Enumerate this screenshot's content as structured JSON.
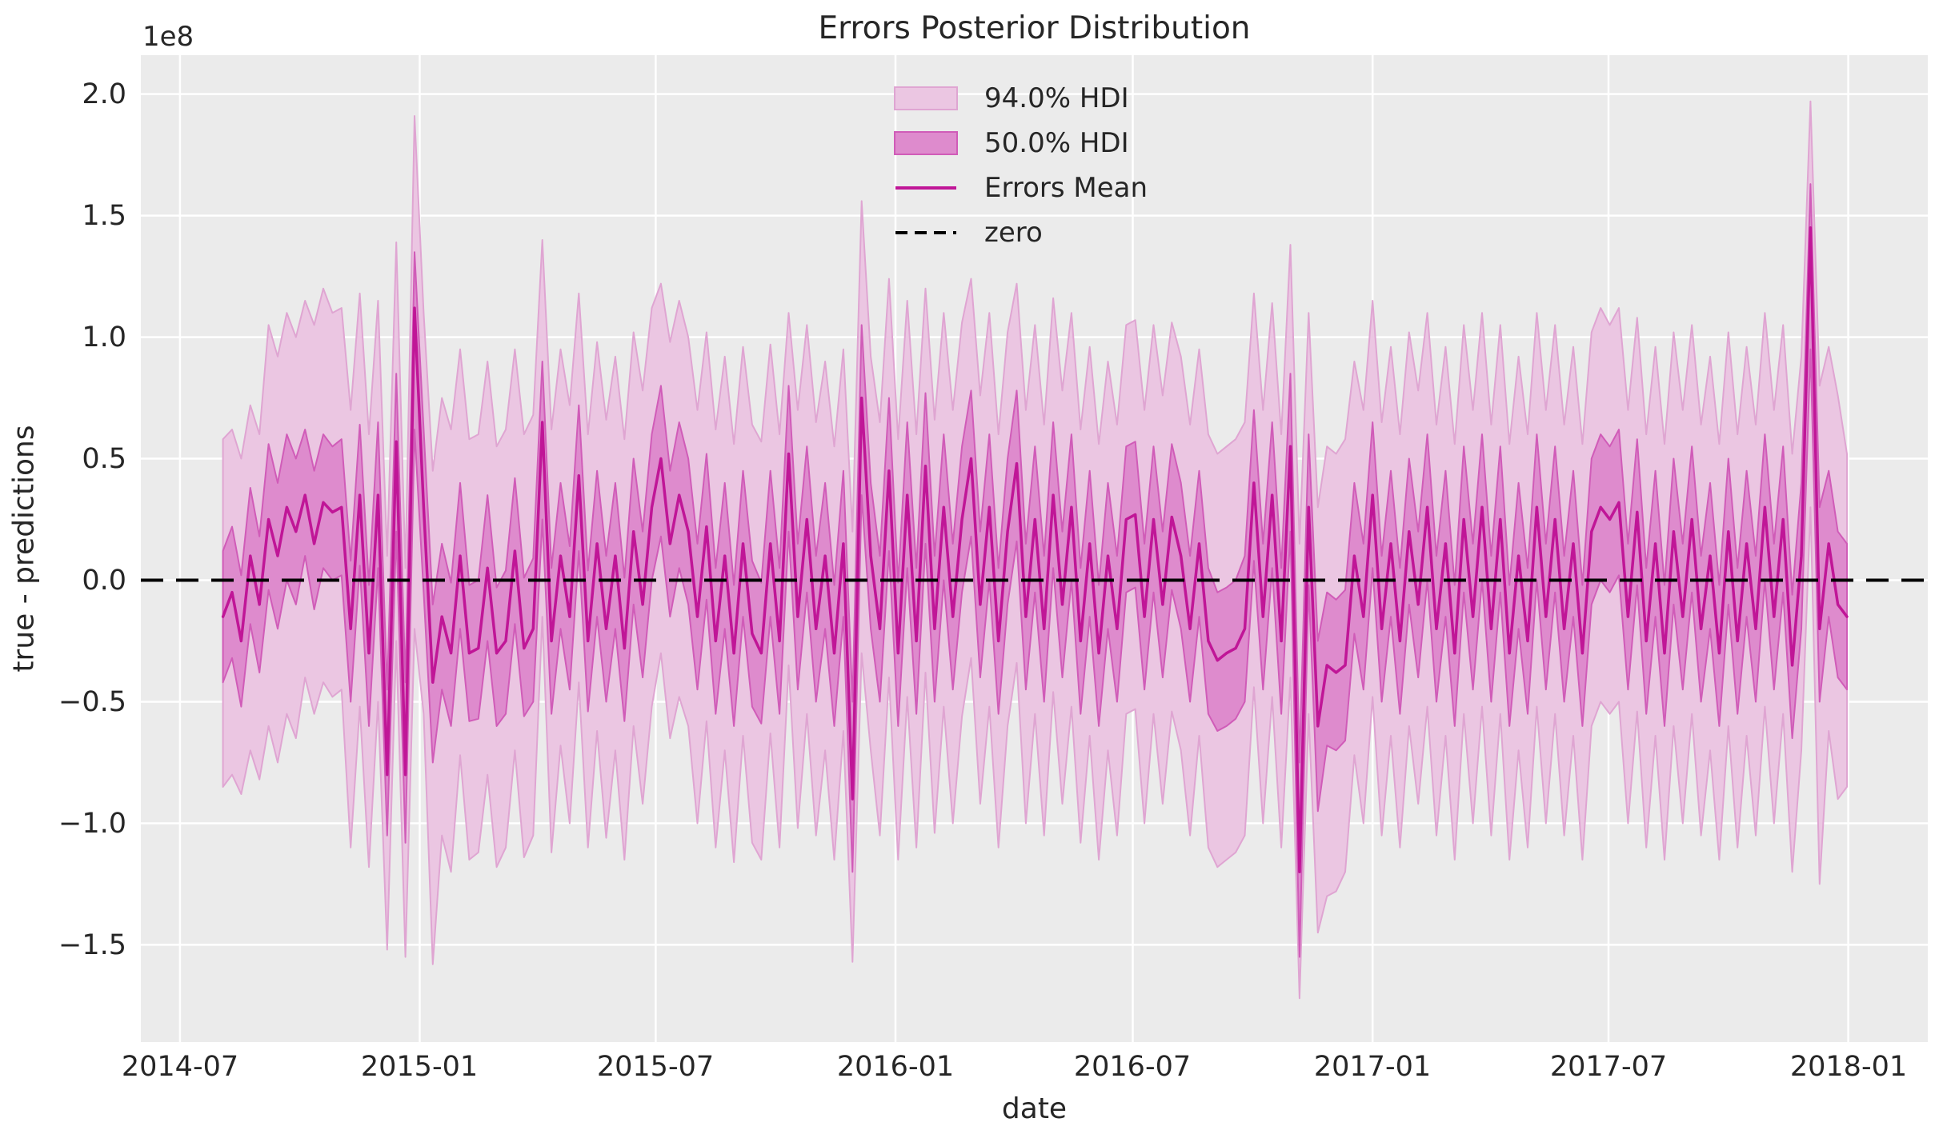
{
  "figure": {
    "title": "Errors Posterior Distribution",
    "xlabel": "date",
    "ylabel": "true - predictions",
    "offset_text": "1e8"
  },
  "colors": {
    "fig_bg": "#ffffff",
    "axes_bg": "#ebebeb",
    "grid": "#ffffff",
    "text": "#262626",
    "mean_line": "#c01697",
    "hdi50_fill": "#de8bcd",
    "hdi50_edge": "#d05cb8",
    "hdi94_fill": "#ebc6e2",
    "hdi94_edge": "#dfa5d2",
    "zero_line": "#000000"
  },
  "legend": {
    "items": [
      {
        "label": "94.0% HDI",
        "type": "patch"
      },
      {
        "label": "50.0% HDI",
        "type": "patch"
      },
      {
        "label": "Errors Mean",
        "type": "line"
      },
      {
        "label": "zero",
        "type": "dashed-line"
      }
    ]
  },
  "chart_data": {
    "type": "line",
    "title": "Errors Posterior Distribution",
    "xlabel": "date",
    "ylabel": "true - predictions",
    "y_offset_label": "1e8",
    "y_scale_factor": 100000000,
    "grid": true,
    "legend_position": "upper center-right",
    "xlim": [
      "2014-06-01",
      "2018-03-03"
    ],
    "ylim": [
      -1.9,
      2.16
    ],
    "x_tick_dates": [
      "2014-07-01",
      "2015-01-01",
      "2015-07-01",
      "2016-01-01",
      "2016-07-01",
      "2017-01-01",
      "2017-07-01",
      "2018-01-01"
    ],
    "x_ticklabels": [
      "2014-07",
      "2015-01",
      "2015-07",
      "2016-01",
      "2016-07",
      "2017-01",
      "2017-07",
      "2018-01"
    ],
    "y_ticks": [
      2.0,
      1.5,
      1.0,
      0.5,
      0.0,
      -0.5,
      -1.0,
      -1.5
    ],
    "y_ticklabels": [
      "2.0",
      "1.5",
      "1.0",
      "0.5",
      "0.0",
      "−0.5",
      "−1.0",
      "−1.5"
    ],
    "series": [
      {
        "name": "Errors Mean",
        "type": "line"
      },
      {
        "name": "50.0% HDI",
        "type": "band",
        "hdi_prob": 0.5
      },
      {
        "name": "94.0% HDI",
        "type": "band",
        "hdi_prob": 0.94
      },
      {
        "name": "zero",
        "type": "hline",
        "value": 0
      }
    ],
    "x_start_date": "2014-08-03",
    "x_interval_days": 7,
    "columns": [
      "mean",
      "hdi50_lower",
      "hdi50_upper",
      "hdi94_lower",
      "hdi94_upper"
    ],
    "units": "1e8 (true - predictions)",
    "points": [
      [
        -0.15,
        -0.42,
        0.12,
        -0.85,
        0.58
      ],
      [
        -0.05,
        -0.32,
        0.22,
        -0.8,
        0.62
      ],
      [
        -0.25,
        -0.52,
        0.02,
        -0.88,
        0.5
      ],
      [
        0.1,
        -0.18,
        0.38,
        -0.7,
        0.72
      ],
      [
        -0.1,
        -0.38,
        0.18,
        -0.82,
        0.6
      ],
      [
        0.25,
        -0.04,
        0.56,
        -0.6,
        1.05
      ],
      [
        0.1,
        -0.2,
        0.4,
        -0.75,
        0.92
      ],
      [
        0.3,
        0,
        0.6,
        -0.55,
        1.1
      ],
      [
        0.2,
        -0.1,
        0.5,
        -0.65,
        1.0
      ],
      [
        0.35,
        0.1,
        0.62,
        -0.4,
        1.15
      ],
      [
        0.15,
        -0.12,
        0.45,
        -0.55,
        1.05
      ],
      [
        0.32,
        0.05,
        0.6,
        -0.42,
        1.2
      ],
      [
        0.28,
        0,
        0.55,
        -0.48,
        1.1
      ],
      [
        0.3,
        0.02,
        0.58,
        -0.45,
        1.12
      ],
      [
        -0.2,
        -0.5,
        0.08,
        -1.1,
        0.7
      ],
      [
        0.35,
        0.06,
        0.64,
        -0.52,
        1.18
      ],
      [
        -0.3,
        -0.6,
        -0.02,
        -1.18,
        0.6
      ],
      [
        0.35,
        0.05,
        0.65,
        -0.5,
        1.15
      ],
      [
        -0.8,
        -1.05,
        -0.45,
        -1.52,
        0.1
      ],
      [
        0.57,
        0.2,
        0.85,
        -0.25,
        1.39
      ],
      [
        -0.8,
        -1.08,
        -0.42,
        -1.55,
        0.05
      ],
      [
        1.12,
        0.62,
        1.35,
        -0.2,
        1.91
      ],
      [
        0.3,
        -0.05,
        0.62,
        -0.55,
        1.1
      ],
      [
        -0.42,
        -0.75,
        -0.1,
        -1.58,
        0.45
      ],
      [
        -0.15,
        -0.45,
        0.15,
        -1.05,
        0.75
      ],
      [
        -0.3,
        -0.6,
        -0.01,
        -1.2,
        0.62
      ],
      [
        0.1,
        -0.2,
        0.4,
        -0.72,
        0.95
      ],
      [
        -0.3,
        -0.58,
        -0.02,
        -1.15,
        0.58
      ],
      [
        -0.28,
        -0.57,
        0,
        -1.12,
        0.6
      ],
      [
        0.05,
        -0.25,
        0.35,
        -0.8,
        0.9
      ],
      [
        -0.3,
        -0.6,
        -0.03,
        -1.18,
        0.55
      ],
      [
        -0.25,
        -0.55,
        0.04,
        -1.1,
        0.62
      ],
      [
        0.12,
        -0.18,
        0.42,
        -0.7,
        0.95
      ],
      [
        -0.28,
        -0.56,
        0.01,
        -1.14,
        0.6
      ],
      [
        -0.2,
        -0.5,
        0.09,
        -1.05,
        0.68
      ],
      [
        0.65,
        0.25,
        0.9,
        -0.15,
        1.4
      ],
      [
        -0.25,
        -0.55,
        0.05,
        -1.12,
        0.62
      ],
      [
        0.1,
        -0.2,
        0.4,
        -0.68,
        0.95
      ],
      [
        -0.15,
        -0.45,
        0.14,
        -1.0,
        0.72
      ],
      [
        0.43,
        0.12,
        0.72,
        -0.42,
        1.18
      ],
      [
        -0.25,
        -0.54,
        0.04,
        -1.1,
        0.6
      ],
      [
        0.15,
        -0.15,
        0.45,
        -0.62,
        0.98
      ],
      [
        -0.2,
        -0.5,
        0.1,
        -1.06,
        0.66
      ],
      [
        0.1,
        -0.2,
        0.4,
        -0.7,
        0.92
      ],
      [
        -0.28,
        -0.58,
        0.01,
        -1.15,
        0.58
      ],
      [
        0.2,
        -0.1,
        0.5,
        -0.6,
        1.02
      ],
      [
        -0.1,
        -0.4,
        0.2,
        -0.92,
        0.78
      ],
      [
        0.3,
        0,
        0.6,
        -0.52,
        1.12
      ],
      [
        0.5,
        0.18,
        0.8,
        -0.3,
        1.22
      ],
      [
        0.15,
        -0.15,
        0.45,
        -0.65,
        0.98
      ],
      [
        0.35,
        0.05,
        0.65,
        -0.48,
        1.15
      ],
      [
        0.2,
        -0.1,
        0.5,
        -0.6,
        1.0
      ],
      [
        -0.15,
        -0.45,
        0.15,
        -1.0,
        0.7
      ],
      [
        0.22,
        -0.08,
        0.52,
        -0.58,
        1.02
      ],
      [
        -0.25,
        -0.55,
        0.05,
        -1.1,
        0.62
      ],
      [
        0.1,
        -0.2,
        0.4,
        -0.7,
        0.92
      ],
      [
        -0.3,
        -0.6,
        -0.02,
        -1.16,
        0.56
      ],
      [
        0.15,
        -0.15,
        0.45,
        -0.64,
        0.96
      ],
      [
        -0.22,
        -0.52,
        0.08,
        -1.08,
        0.64
      ],
      [
        -0.3,
        -0.59,
        -0.01,
        -1.15,
        0.57
      ],
      [
        0.15,
        -0.15,
        0.45,
        -0.63,
        0.97
      ],
      [
        -0.25,
        -0.55,
        0.05,
        -1.1,
        0.6
      ],
      [
        0.52,
        0.2,
        0.8,
        -0.35,
        1.1
      ],
      [
        -0.15,
        -0.45,
        0.15,
        -1.02,
        0.7
      ],
      [
        0.25,
        -0.05,
        0.55,
        -0.55,
        1.05
      ],
      [
        -0.2,
        -0.5,
        0.1,
        -1.05,
        0.65
      ],
      [
        0.1,
        -0.2,
        0.4,
        -0.7,
        0.9
      ],
      [
        -0.3,
        -0.6,
        -0.02,
        -1.15,
        0.55
      ],
      [
        0.15,
        -0.15,
        0.45,
        -0.62,
        0.95
      ],
      [
        -0.9,
        -1.2,
        -0.5,
        -1.57,
        0.2
      ],
      [
        0.75,
        0.35,
        1.05,
        -0.3,
        1.56
      ],
      [
        0.1,
        -0.2,
        0.4,
        -0.7,
        0.92
      ],
      [
        -0.2,
        -0.5,
        0.1,
        -1.05,
        0.65
      ],
      [
        0.45,
        0.12,
        0.75,
        -0.4,
        1.24
      ],
      [
        -0.3,
        -0.6,
        -0.01,
        -1.15,
        0.58
      ],
      [
        0.35,
        0.05,
        0.65,
        -0.48,
        1.15
      ],
      [
        -0.25,
        -0.55,
        0.05,
        -1.1,
        0.6
      ],
      [
        0.47,
        0.15,
        0.77,
        -0.38,
        1.2
      ],
      [
        -0.2,
        -0.5,
        0.1,
        -1.04,
        0.66
      ],
      [
        0.3,
        0,
        0.6,
        -0.52,
        1.1
      ],
      [
        -0.15,
        -0.45,
        0.15,
        -1.0,
        0.7
      ],
      [
        0.25,
        -0.05,
        0.55,
        -0.56,
        1.06
      ],
      [
        0.5,
        0.18,
        0.78,
        -0.32,
        1.24
      ],
      [
        -0.1,
        -0.4,
        0.2,
        -0.92,
        0.76
      ],
      [
        0.3,
        0,
        0.6,
        -0.52,
        1.1
      ],
      [
        -0.25,
        -0.55,
        0.05,
        -1.1,
        0.6
      ],
      [
        0.2,
        -0.1,
        0.5,
        -0.6,
        1.02
      ],
      [
        0.48,
        0.16,
        0.78,
        -0.34,
        1.22
      ],
      [
        -0.15,
        -0.45,
        0.15,
        -1.0,
        0.7
      ],
      [
        0.25,
        -0.05,
        0.55,
        -0.55,
        1.05
      ],
      [
        -0.2,
        -0.5,
        0.1,
        -1.05,
        0.64
      ],
      [
        0.35,
        0.05,
        0.65,
        -0.46,
        1.16
      ],
      [
        -0.1,
        -0.4,
        0.2,
        -0.92,
        0.78
      ],
      [
        0.3,
        0,
        0.6,
        -0.52,
        1.1
      ],
      [
        -0.25,
        -0.55,
        0.05,
        -1.08,
        0.62
      ],
      [
        0.15,
        -0.15,
        0.45,
        -0.64,
        0.96
      ],
      [
        -0.3,
        -0.6,
        -0.02,
        -1.15,
        0.56
      ],
      [
        0.1,
        -0.2,
        0.4,
        -0.7,
        0.9
      ],
      [
        -0.2,
        -0.5,
        0.1,
        -1.05,
        0.64
      ],
      [
        0.25,
        -0.05,
        0.55,
        -0.55,
        1.05
      ],
      [
        0.27,
        -0.03,
        0.57,
        -0.53,
        1.07
      ],
      [
        -0.15,
        -0.45,
        0.15,
        -1.0,
        0.7
      ],
      [
        0.25,
        -0.05,
        0.55,
        -0.55,
        1.05
      ],
      [
        -0.1,
        -0.4,
        0.2,
        -0.92,
        0.76
      ],
      [
        0.26,
        -0.04,
        0.56,
        -0.54,
        1.06
      ],
      [
        0.1,
        -0.2,
        0.4,
        -0.7,
        0.92
      ],
      [
        -0.2,
        -0.5,
        0.1,
        -1.05,
        0.64
      ],
      [
        0.15,
        -0.15,
        0.45,
        -0.64,
        0.95
      ],
      [
        -0.25,
        -0.55,
        0.05,
        -1.1,
        0.6
      ],
      [
        -0.33,
        -0.62,
        -0.05,
        -1.18,
        0.52
      ],
      [
        -0.3,
        -0.6,
        -0.03,
        -1.15,
        0.55
      ],
      [
        -0.28,
        -0.57,
        0,
        -1.12,
        0.58
      ],
      [
        -0.2,
        -0.5,
        0.1,
        -1.05,
        0.65
      ],
      [
        0.4,
        0.08,
        0.7,
        -0.44,
        1.18
      ],
      [
        -0.15,
        -0.45,
        0.15,
        -1.0,
        0.7
      ],
      [
        0.35,
        0.05,
        0.65,
        -0.48,
        1.14
      ],
      [
        -0.25,
        -0.55,
        0.05,
        -1.1,
        0.6
      ],
      [
        0.55,
        0.2,
        0.85,
        -0.4,
        1.38
      ],
      [
        -1.2,
        -1.55,
        -0.75,
        -1.72,
        0.15
      ],
      [
        0.3,
        -0.02,
        0.6,
        -0.55,
        1.1
      ],
      [
        -0.6,
        -0.95,
        -0.25,
        -1.45,
        0.3
      ],
      [
        -0.35,
        -0.68,
        -0.05,
        -1.3,
        0.55
      ],
      [
        -0.38,
        -0.7,
        -0.08,
        -1.28,
        0.52
      ],
      [
        -0.35,
        -0.66,
        -0.04,
        -1.2,
        0.58
      ],
      [
        0.1,
        -0.22,
        0.4,
        -0.72,
        0.9
      ],
      [
        -0.15,
        -0.45,
        0.15,
        -1.0,
        0.7
      ],
      [
        0.35,
        0.05,
        0.65,
        -0.48,
        1.15
      ],
      [
        -0.2,
        -0.5,
        0.1,
        -1.05,
        0.65
      ],
      [
        0.15,
        -0.15,
        0.45,
        -0.64,
        0.96
      ],
      [
        -0.25,
        -0.55,
        0.05,
        -1.1,
        0.6
      ],
      [
        0.2,
        -0.1,
        0.5,
        -0.6,
        1.02
      ],
      [
        -0.1,
        -0.4,
        0.2,
        -0.92,
        0.78
      ],
      [
        0.3,
        0,
        0.6,
        -0.52,
        1.1
      ],
      [
        -0.2,
        -0.5,
        0.1,
        -1.05,
        0.64
      ],
      [
        0.15,
        -0.15,
        0.45,
        -0.64,
        0.96
      ],
      [
        -0.3,
        -0.6,
        -0.02,
        -1.15,
        0.56
      ],
      [
        0.25,
        -0.05,
        0.55,
        -0.55,
        1.05
      ],
      [
        -0.15,
        -0.45,
        0.15,
        -1.0,
        0.7
      ],
      [
        0.3,
        0,
        0.6,
        -0.52,
        1.1
      ],
      [
        -0.2,
        -0.5,
        0.1,
        -1.05,
        0.64
      ],
      [
        0.25,
        -0.05,
        0.55,
        -0.55,
        1.05
      ],
      [
        -0.3,
        -0.6,
        -0.02,
        -1.15,
        0.56
      ],
      [
        0.1,
        -0.2,
        0.4,
        -0.7,
        0.92
      ],
      [
        -0.25,
        -0.55,
        0.05,
        -1.1,
        0.6
      ],
      [
        0.3,
        0,
        0.6,
        -0.52,
        1.1
      ],
      [
        -0.15,
        -0.45,
        0.15,
        -1.0,
        0.7
      ],
      [
        0.25,
        -0.05,
        0.55,
        -0.55,
        1.05
      ],
      [
        -0.2,
        -0.5,
        0.1,
        -1.05,
        0.64
      ],
      [
        0.15,
        -0.15,
        0.45,
        -0.64,
        0.96
      ],
      [
        -0.3,
        -0.6,
        -0.02,
        -1.15,
        0.56
      ],
      [
        0.2,
        -0.1,
        0.5,
        -0.6,
        1.02
      ],
      [
        0.3,
        0,
        0.6,
        -0.5,
        1.12
      ],
      [
        0.25,
        -0.05,
        0.55,
        -0.55,
        1.05
      ],
      [
        0.32,
        0.02,
        0.62,
        -0.5,
        1.12
      ],
      [
        -0.15,
        -0.45,
        0.15,
        -1.0,
        0.7
      ],
      [
        0.28,
        -0.02,
        0.58,
        -0.54,
        1.08
      ],
      [
        -0.25,
        -0.55,
        0.05,
        -1.1,
        0.6
      ],
      [
        0.15,
        -0.15,
        0.45,
        -0.64,
        0.96
      ],
      [
        -0.3,
        -0.6,
        -0.02,
        -1.15,
        0.56
      ],
      [
        0.2,
        -0.1,
        0.5,
        -0.6,
        1.02
      ],
      [
        -0.15,
        -0.45,
        0.15,
        -1.0,
        0.7
      ],
      [
        0.25,
        -0.05,
        0.55,
        -0.55,
        1.05
      ],
      [
        -0.2,
        -0.5,
        0.1,
        -1.05,
        0.64
      ],
      [
        0.1,
        -0.2,
        0.4,
        -0.7,
        0.92
      ],
      [
        -0.3,
        -0.6,
        -0.02,
        -1.15,
        0.56
      ],
      [
        0.2,
        -0.1,
        0.5,
        -0.6,
        1.02
      ],
      [
        -0.25,
        -0.55,
        0.05,
        -1.1,
        0.6
      ],
      [
        0.15,
        -0.15,
        0.45,
        -0.64,
        0.96
      ],
      [
        -0.2,
        -0.5,
        0.1,
        -1.05,
        0.64
      ],
      [
        0.3,
        0,
        0.6,
        -0.52,
        1.1
      ],
      [
        -0.15,
        -0.45,
        0.15,
        -1.0,
        0.7
      ],
      [
        0.25,
        -0.05,
        0.55,
        -0.55,
        1.05
      ],
      [
        -0.35,
        -0.65,
        -0.06,
        -1.2,
        0.52
      ],
      [
        0.1,
        -0.2,
        0.4,
        -0.7,
        0.92
      ],
      [
        1.45,
        0.95,
        1.63,
        0.3,
        1.97
      ],
      [
        -0.2,
        -0.5,
        0.3,
        -1.25,
        0.8
      ],
      [
        0.15,
        -0.15,
        0.45,
        -0.62,
        0.96
      ],
      [
        -0.1,
        -0.4,
        0.2,
        -0.9,
        0.76
      ],
      [
        -0.15,
        -0.45,
        0.15,
        -0.85,
        0.52
      ]
    ]
  }
}
